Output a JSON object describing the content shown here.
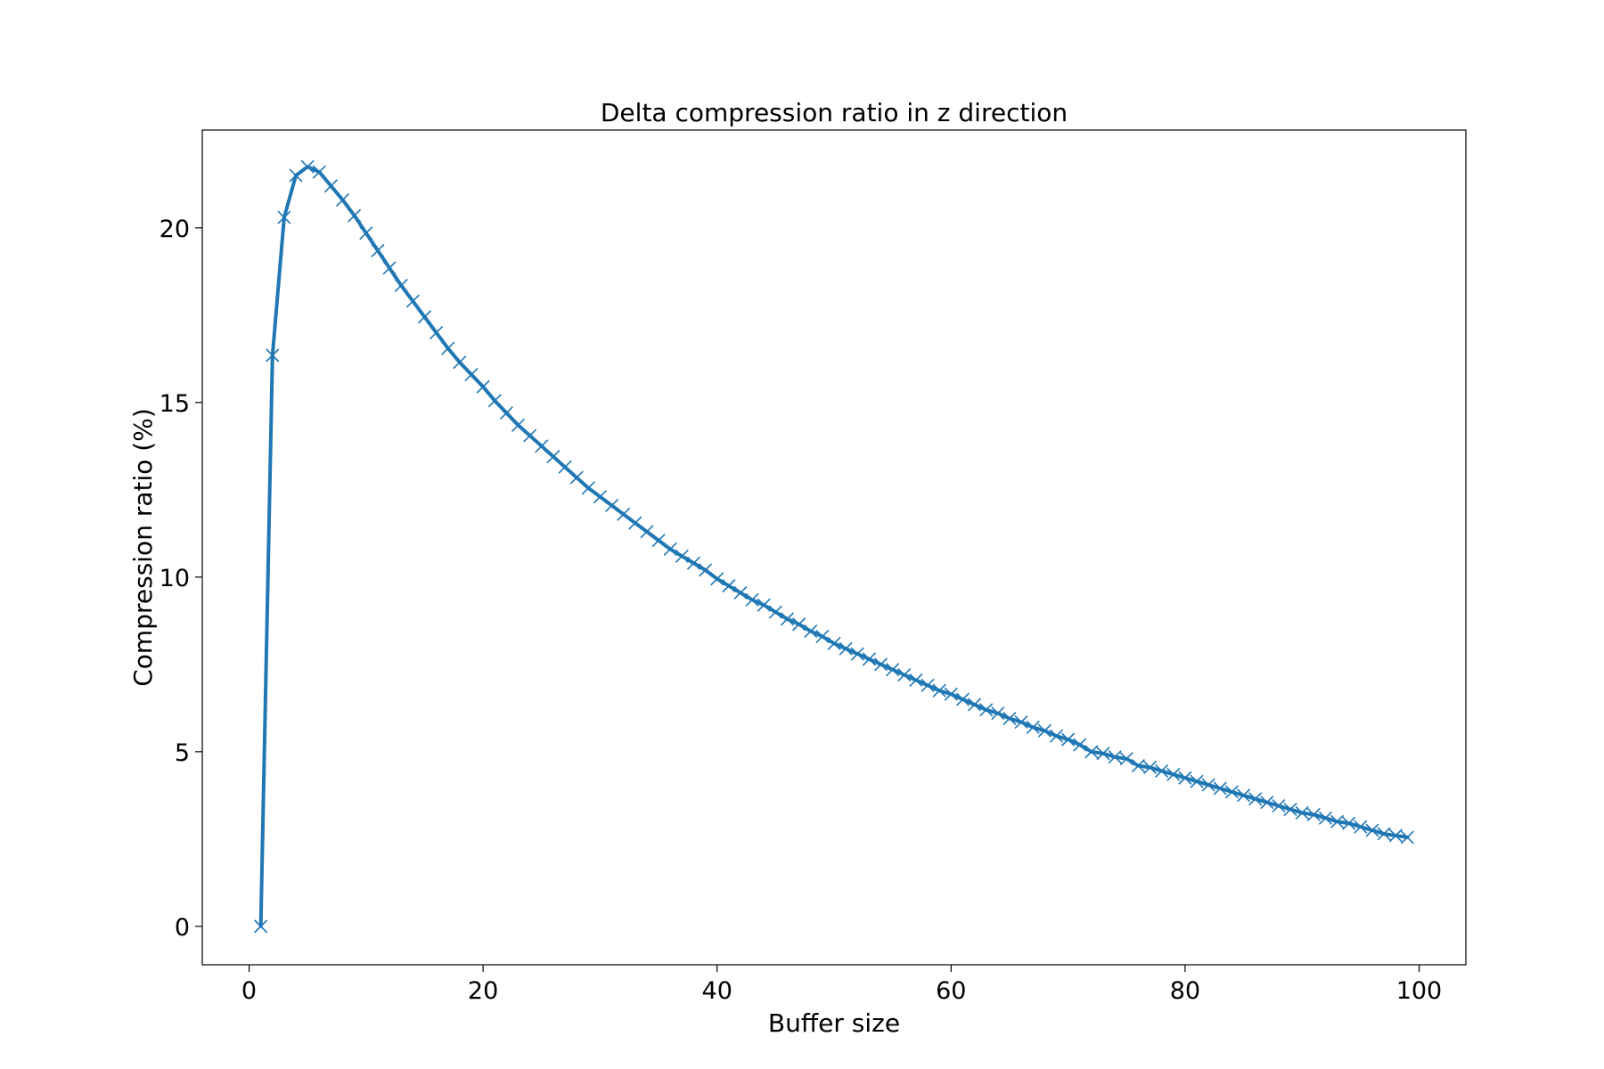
{
  "chart_data": {
    "type": "line",
    "title": "Delta compression ratio in z direction",
    "xlabel": "Buffer size",
    "ylabel": "Compression ratio (%)",
    "xlim": [
      -4,
      104
    ],
    "ylim": [
      -1.1,
      22.8
    ],
    "grid": false,
    "legend": "none",
    "line_color": "#1f77b4",
    "marker": "x",
    "x_ticks": [
      0,
      20,
      40,
      60,
      80,
      100
    ],
    "x_tick_labels": [
      "0",
      "20",
      "40",
      "60",
      "80",
      "100"
    ],
    "y_ticks": [
      0,
      5,
      10,
      15,
      20
    ],
    "y_tick_labels": [
      "0",
      "5",
      "10",
      "15",
      "20"
    ],
    "series": [
      {
        "x": [
          1,
          2,
          3,
          4,
          5,
          6,
          7,
          8,
          9,
          10,
          11,
          12,
          13,
          14,
          15,
          16,
          17,
          18,
          19,
          20,
          21,
          22,
          23,
          24,
          25,
          26,
          27,
          28,
          29,
          30,
          31,
          32,
          33,
          34,
          35,
          36,
          37,
          38,
          39,
          40,
          41,
          42,
          43,
          44,
          45,
          46,
          47,
          48,
          49,
          50,
          51,
          52,
          53,
          54,
          55,
          56,
          57,
          58,
          59,
          60,
          61,
          62,
          63,
          64,
          65,
          66,
          67,
          68,
          69,
          70,
          71,
          72,
          73,
          74,
          75,
          76,
          77,
          78,
          79,
          80,
          81,
          82,
          83,
          84,
          85,
          86,
          87,
          88,
          89,
          90,
          91,
          92,
          93,
          94,
          95,
          96,
          97,
          98,
          99
        ],
        "values": [
          0.0,
          16.35,
          20.3,
          21.5,
          21.75,
          21.6,
          21.2,
          20.8,
          20.35,
          19.85,
          19.35,
          18.85,
          18.35,
          17.9,
          17.45,
          17.0,
          16.55,
          16.15,
          15.8,
          15.45,
          15.05,
          14.7,
          14.35,
          14.05,
          13.75,
          13.45,
          13.15,
          12.85,
          12.55,
          12.3,
          12.05,
          11.8,
          11.55,
          11.3,
          11.05,
          10.8,
          10.6,
          10.4,
          10.2,
          9.95,
          9.75,
          9.55,
          9.35,
          9.2,
          9.0,
          8.8,
          8.65,
          8.45,
          8.3,
          8.1,
          7.95,
          7.8,
          7.65,
          7.5,
          7.35,
          7.2,
          7.05,
          6.9,
          6.75,
          6.65,
          6.5,
          6.35,
          6.2,
          6.1,
          5.95,
          5.85,
          5.7,
          5.6,
          5.45,
          5.35,
          5.2,
          5.0,
          4.95,
          4.85,
          4.8,
          4.6,
          4.55,
          4.45,
          4.35,
          4.25,
          4.15,
          4.05,
          3.95,
          3.85,
          3.75,
          3.65,
          3.55,
          3.45,
          3.35,
          3.25,
          3.2,
          3.1,
          3.0,
          2.95,
          2.85,
          2.75,
          2.65,
          2.6,
          2.55
        ]
      }
    ]
  }
}
